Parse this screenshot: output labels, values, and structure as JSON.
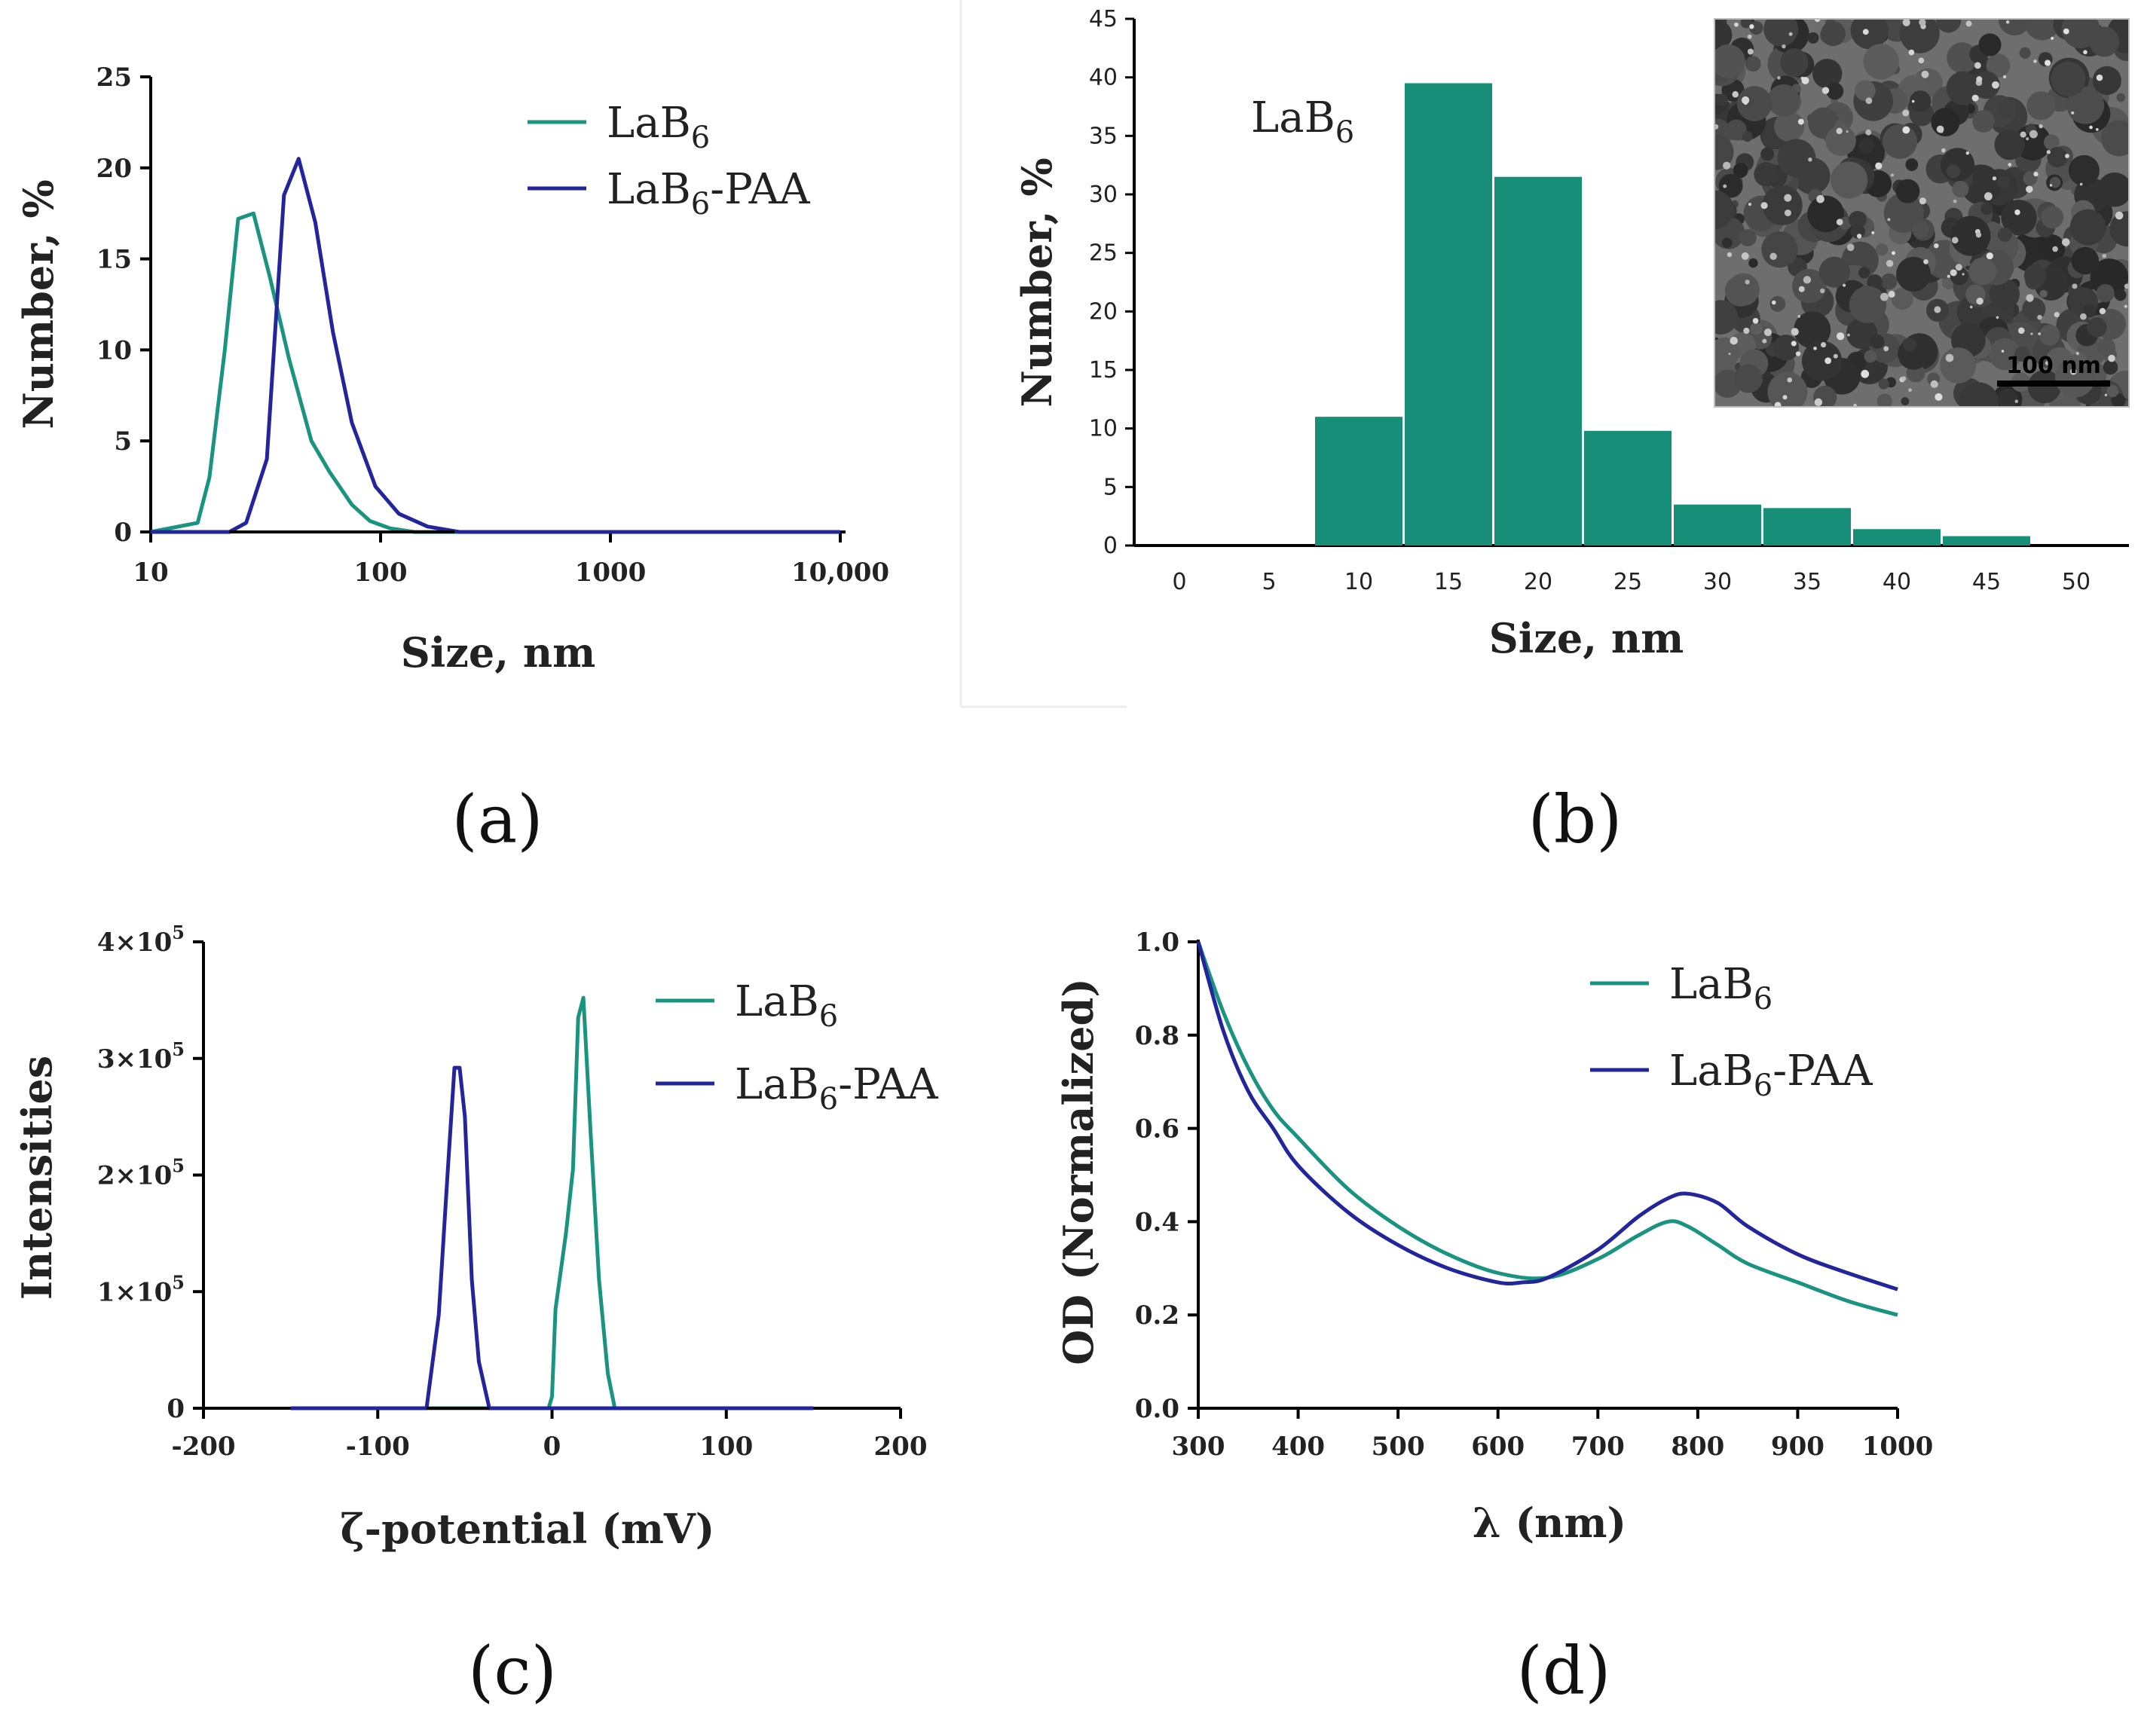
{
  "colors": {
    "lab6": "#1a9480",
    "lab6_paa": "#23259b",
    "bar": "#178f78"
  },
  "panel_labels": [
    "(a)",
    "(b)",
    "(c)",
    "(d)"
  ],
  "chart_data": [
    {
      "type": "line",
      "panel": "a",
      "xlabel": "Size, nm",
      "ylabel": "Number, %",
      "xscale": "log",
      "xlim": [
        10,
        10000
      ],
      "ylim": [
        0,
        25
      ],
      "xticks": [
        "10",
        "100",
        "1000",
        "10,000"
      ],
      "yticks": [
        "0",
        "5",
        "10",
        "15",
        "20",
        "25"
      ],
      "legend": [
        "LaB",
        "LaB"
      ],
      "legend_sub": [
        "6",
        "6"
      ],
      "legend_suffix": [
        "",
        "-PAA"
      ],
      "series": [
        {
          "name": "LaB6",
          "x": [
            10,
            16,
            18,
            21,
            24,
            28,
            33,
            40,
            50,
            60,
            75,
            90,
            110,
            140,
            10000
          ],
          "y": [
            0,
            0.5,
            3,
            10,
            17.2,
            17.5,
            14,
            9.5,
            5,
            3.3,
            1.5,
            0.6,
            0.2,
            0,
            0
          ]
        },
        {
          "name": "LaB6-PAA",
          "x": [
            10,
            22,
            26,
            32,
            38,
            44,
            52,
            62,
            75,
            95,
            120,
            160,
            220,
            10000
          ],
          "y": [
            0,
            0,
            0.5,
            4,
            18.5,
            20.5,
            17,
            11,
            6,
            2.5,
            1,
            0.3,
            0,
            0
          ]
        }
      ]
    },
    {
      "type": "bar",
      "panel": "b",
      "xlabel": "Size, nm",
      "ylabel": "Number, %",
      "annotation": "LaB",
      "annotation_sub": "6",
      "inset_scale_label": "100 nm",
      "categories": [
        "0",
        "5",
        "10",
        "15",
        "20",
        "25",
        "30",
        "35",
        "40",
        "45",
        "50"
      ],
      "values": [
        0,
        0,
        11,
        39.5,
        31.5,
        9.8,
        3.5,
        3.2,
        1.4,
        0.8,
        0
      ],
      "ylim": [
        0,
        45
      ],
      "yticks": [
        "0",
        "5",
        "10",
        "15",
        "20",
        "25",
        "30",
        "35",
        "40",
        "45"
      ]
    },
    {
      "type": "line",
      "panel": "c",
      "xlabel": "ζ-potential (mV)",
      "ylabel": "Intensities",
      "xlim": [
        -200,
        200
      ],
      "ylim": [
        0,
        400000
      ],
      "xticks": [
        "-200",
        "-100",
        "0",
        "100",
        "200"
      ],
      "ytick_values": [
        0,
        100000,
        200000,
        300000,
        400000
      ],
      "yticks": [
        "0",
        "1×10",
        "2×10",
        "3×10",
        "4×10"
      ],
      "ytick_exp": [
        "",
        "5",
        "5",
        "5",
        "5"
      ],
      "legend": [
        "LaB",
        "LaB"
      ],
      "legend_sub": [
        "6",
        "6"
      ],
      "legend_suffix": [
        "",
        "-PAA"
      ],
      "series": [
        {
          "name": "LaB6",
          "x": [
            -150,
            -2,
            0,
            2,
            8,
            12,
            15,
            18,
            22,
            27,
            32,
            36,
            150
          ],
          "y": [
            0,
            0,
            10000,
            85000,
            150000,
            205000,
            335000,
            352000,
            240000,
            110000,
            30000,
            0,
            0
          ]
        },
        {
          "name": "LaB6-PAA",
          "x": [
            -150,
            -72,
            -65,
            -60,
            -56,
            -53,
            -50,
            -46,
            -42,
            -36,
            150
          ],
          "y": [
            0,
            0,
            80000,
            200000,
            292000,
            292000,
            250000,
            110000,
            40000,
            0,
            0
          ]
        }
      ]
    },
    {
      "type": "line",
      "panel": "d",
      "xlabel": "λ (nm)",
      "ylabel": "OD (Normalized)",
      "xlim": [
        300,
        1000
      ],
      "ylim": [
        0,
        1.0
      ],
      "xticks": [
        "300",
        "400",
        "500",
        "600",
        "700",
        "800",
        "900",
        "1000"
      ],
      "yticks": [
        "0.0",
        "0.2",
        "0.4",
        "0.6",
        "0.8",
        "1.0"
      ],
      "legend": [
        "LaB",
        "LaB"
      ],
      "legend_sub": [
        "6",
        "6"
      ],
      "legend_suffix": [
        "",
        "-PAA"
      ],
      "series": [
        {
          "name": "LaB6",
          "x": [
            300,
            325,
            350,
            375,
            400,
            450,
            500,
            550,
            600,
            650,
            700,
            740,
            770,
            790,
            820,
            850,
            900,
            950,
            1000
          ],
          "y": [
            1.0,
            0.85,
            0.73,
            0.64,
            0.58,
            0.47,
            0.39,
            0.33,
            0.29,
            0.28,
            0.32,
            0.37,
            0.4,
            0.39,
            0.35,
            0.31,
            0.27,
            0.23,
            0.2
          ]
        },
        {
          "name": "LaB6-PAA",
          "x": [
            300,
            325,
            350,
            375,
            400,
            450,
            500,
            550,
            600,
            625,
            650,
            700,
            740,
            770,
            790,
            820,
            850,
            900,
            950,
            1000
          ],
          "y": [
            1.0,
            0.81,
            0.68,
            0.6,
            0.52,
            0.42,
            0.35,
            0.3,
            0.27,
            0.27,
            0.28,
            0.34,
            0.41,
            0.45,
            0.46,
            0.44,
            0.39,
            0.33,
            0.29,
            0.255
          ]
        }
      ]
    }
  ]
}
